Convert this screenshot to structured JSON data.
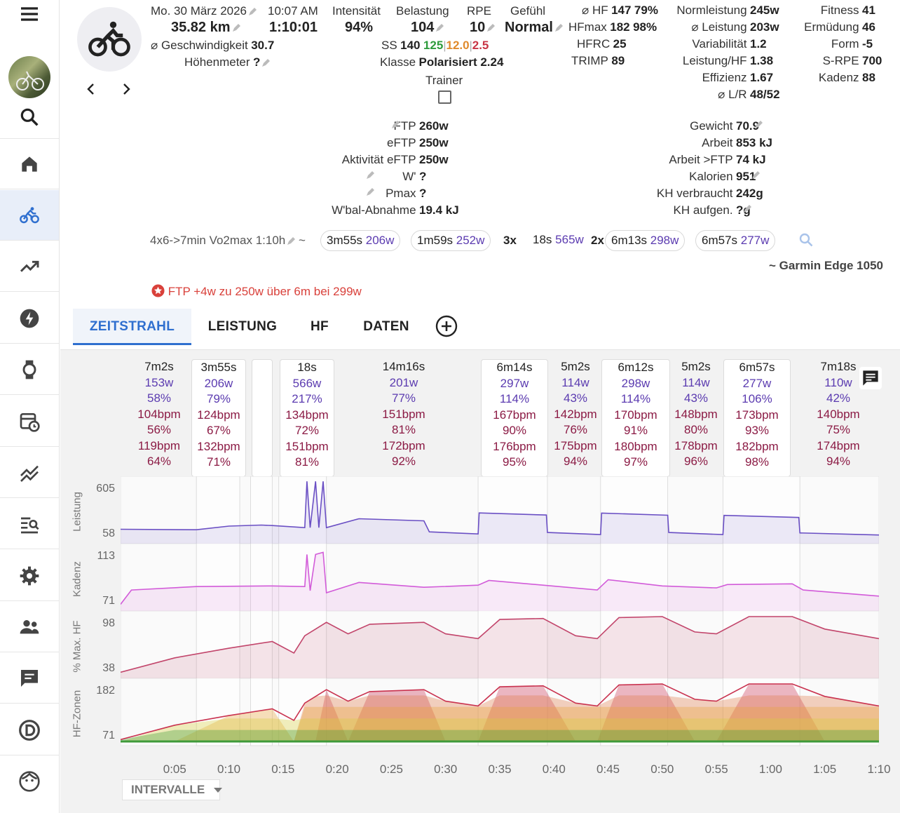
{
  "activity": {
    "date": "Mo. 30 März 2026",
    "time": "10:07 AM",
    "distance": "35.82 km",
    "duration": "1:10:01",
    "avg_speed_label": "⌀ Geschwindigkeit",
    "avg_speed": "30.7",
    "elevation_label": "Höhenmeter",
    "elevation": "?",
    "device": "~ Garmin Edge 1050",
    "name": "4x6->7min Vo2max 1:10h",
    "tilde": "~"
  },
  "load": {
    "intensity_label": "Intensität",
    "intensity": "94%",
    "load_label": "Belastung",
    "load": "104",
    "rpe_label": "RPE",
    "rpe": "10",
    "feel_label": "Gefühl",
    "feel": "Normal",
    "ss_label": "SS",
    "ss": "140",
    "ss_a": "125",
    "ss_b": "12.0",
    "ss_c": "2.5",
    "class_label": "Klasse",
    "class": "Polarisiert 2.24",
    "trainer_label": "Trainer"
  },
  "hr": {
    "hf_label": "⌀ HF",
    "hf": "147",
    "hf_pct": "79%",
    "hfmax_label": "HFmax",
    "hfmax": "182",
    "hfmax_pct": "98%",
    "hfrc_label": "HFRC",
    "hfrc": "25",
    "trimp_label": "TRIMP",
    "trimp": "89"
  },
  "power": {
    "np_label": "Normleistung",
    "np": "245w",
    "avg_label": "⌀ Leistung",
    "avg": "203w",
    "vi_label": "Variabilität",
    "vi": "1.2",
    "phr_label": "Leistung/HF",
    "phr": "1.38",
    "eff_label": "Effizienz",
    "eff": "1.67",
    "lr_label": "⌀ L/R",
    "lr": "48/52"
  },
  "fitness": {
    "fit_label": "Fitness",
    "fit": "41",
    "fat_label": "Ermüdung",
    "fat": "46",
    "form_label": "Form",
    "form": "-5",
    "srpe_label": "S-RPE",
    "srpe": "700",
    "cad_label": "Kadenz",
    "cad": "88"
  },
  "ftp_block": {
    "ftp_label": "FTP",
    "ftp": "260w",
    "eftp_label": "eFTP",
    "eftp": "250w",
    "aeftp_label": "Aktivität eFTP",
    "aeftp": "250w",
    "wp_label": "W'",
    "wp": "?",
    "pmax_label": "Pmax",
    "pmax": "?",
    "wbal_label": "W'bal-Abnahme",
    "wbal": "19.4 kJ"
  },
  "energy": {
    "weight_label": "Gewicht",
    "weight": "70.9",
    "work_label": "Arbeit",
    "work": "853 kJ",
    "work_ftp_label": "Arbeit >FTP",
    "work_ftp": "74 kJ",
    "cal_label": "Kalorien",
    "cal": "951",
    "carbs_used_label": "KH verbraucht",
    "carbs_used": "242g",
    "carbs_in_label": "KH aufgen.",
    "carbs_in": "?g"
  },
  "chips": [
    {
      "prefix": "",
      "dur": "3m55s",
      "w": "206w"
    },
    {
      "prefix": "",
      "dur": "1m59s",
      "w": "252w"
    },
    {
      "prefix": "3x",
      "dur": "18s",
      "w": "565w"
    },
    {
      "prefix": "2x",
      "dur": "6m13s",
      "w": "298w"
    },
    {
      "prefix": "",
      "dur": "6m57s",
      "w": "277w"
    }
  ],
  "ftp_alert": "FTP +4w zu 250w über 6m bei 299w",
  "tabs": [
    "ZEITSTRAHL",
    "LEISTUNG",
    "HF",
    "DATEN"
  ],
  "intervals": [
    {
      "dur": "7m2s",
      "w": "153w",
      "wp": "58%",
      "hr": "104bpm",
      "hrp": "56%",
      "mx": "119bpm",
      "mxp": "64%"
    },
    {
      "dur": "3m55s",
      "w": "206w",
      "wp": "79%",
      "hr": "124bpm",
      "hrp": "67%",
      "mx": "132bpm",
      "mxp": "71%"
    },
    {
      "dur": "18s",
      "w": "566w",
      "wp": "217%",
      "hr": "134bpm",
      "hrp": "72%",
      "mx": "151bpm",
      "mxp": "81%"
    },
    {
      "dur": "14m16s",
      "w": "201w",
      "wp": "77%",
      "hr": "151bpm",
      "hrp": "81%",
      "mx": "172bpm",
      "mxp": "92%"
    },
    {
      "dur": "6m14s",
      "w": "297w",
      "wp": "114%",
      "hr": "167bpm",
      "hrp": "90%",
      "mx": "176bpm",
      "mxp": "95%"
    },
    {
      "dur": "5m2s",
      "w": "114w",
      "wp": "43%",
      "hr": "142bpm",
      "hrp": "76%",
      "mx": "175bpm",
      "mxp": "94%"
    },
    {
      "dur": "6m12s",
      "w": "298w",
      "wp": "114%",
      "hr": "170bpm",
      "hrp": "91%",
      "mx": "180bpm",
      "mxp": "97%"
    },
    {
      "dur": "5m2s",
      "w": "114w",
      "wp": "43%",
      "hr": "148bpm",
      "hrp": "80%",
      "mx": "178bpm",
      "mxp": "96%"
    },
    {
      "dur": "6m57s",
      "w": "277w",
      "wp": "106%",
      "hr": "173bpm",
      "hrp": "93%",
      "mx": "182bpm",
      "mxp": "98%"
    },
    {
      "dur": "7m18s",
      "w": "110w",
      "wp": "42%",
      "hr": "140bpm",
      "hrp": "75%",
      "mx": "174bpm",
      "mxp": "94%"
    }
  ],
  "chart_labels": {
    "power": "Leistung",
    "cadence": "Kadenz",
    "hr_pct": "% Max. HF",
    "hr_zones": "HF-Zonen",
    "power_ticks": [
      "605",
      "58"
    ],
    "cad_ticks": [
      "113",
      "71"
    ],
    "hr_ticks": [
      "98",
      "38"
    ],
    "zone_ticks": [
      "182",
      "71"
    ],
    "x_ticks": [
      "0:05",
      "0:10",
      "0:15",
      "0:20",
      "0:25",
      "0:30",
      "0:35",
      "0:40",
      "0:45",
      "0:50",
      "0:55",
      "1:00",
      "1:05",
      "1:10"
    ],
    "intervals_dropdown": "INTERVALLE"
  },
  "colors": {
    "power": "#6a4fc4",
    "cadence": "#d25bd9",
    "hr": "#c2456b",
    "accent": "#2f6fcf",
    "alert": "#d9413b"
  },
  "chart_data": {
    "type": "line",
    "x_unit": "minutes",
    "x_range": [
      0,
      70
    ],
    "series": [
      {
        "name": "Leistung",
        "ylim": [
          58,
          605
        ],
        "points": [
          [
            0,
            145
          ],
          [
            7,
            160
          ],
          [
            10,
            175
          ],
          [
            13,
            205
          ],
          [
            14,
            180
          ],
          [
            17,
            180
          ],
          [
            17.2,
            600
          ],
          [
            17.5,
            180
          ],
          [
            18,
            600
          ],
          [
            18.3,
            180
          ],
          [
            18.7,
            600
          ],
          [
            19,
            180
          ],
          [
            22,
            245
          ],
          [
            28,
            245
          ],
          [
            28.5,
            120
          ],
          [
            33,
            120
          ],
          [
            33.1,
            300
          ],
          [
            39.3,
            300
          ],
          [
            39.4,
            114
          ],
          [
            44.3,
            114
          ],
          [
            44.4,
            298
          ],
          [
            50.5,
            298
          ],
          [
            50.6,
            114
          ],
          [
            55.6,
            114
          ],
          [
            55.7,
            277
          ],
          [
            62.6,
            277
          ],
          [
            62.7,
            110
          ],
          [
            70,
            110
          ]
        ]
      },
      {
        "name": "Kadenz",
        "ylim": [
          71,
          113
        ],
        "points": [
          [
            0,
            72
          ],
          [
            1,
            84
          ],
          [
            7,
            85
          ],
          [
            14,
            87
          ],
          [
            17,
            85
          ],
          [
            17.2,
            110
          ],
          [
            17.5,
            82
          ],
          [
            18,
            110
          ],
          [
            18.7,
            110
          ],
          [
            19,
            82
          ],
          [
            22,
            88
          ],
          [
            28,
            86
          ],
          [
            33,
            86
          ],
          [
            34,
            91
          ],
          [
            39,
            86
          ],
          [
            44,
            84
          ],
          [
            45,
            90
          ],
          [
            50,
            87
          ],
          [
            55,
            84
          ],
          [
            56,
            88
          ],
          [
            62,
            87
          ],
          [
            63,
            84
          ],
          [
            70,
            78
          ]
        ]
      },
      {
        "name": "% Max. HF",
        "ylim": [
          38,
          98
        ],
        "points": [
          [
            0,
            40
          ],
          [
            5,
            55
          ],
          [
            10,
            65
          ],
          [
            14,
            72
          ],
          [
            16,
            60
          ],
          [
            17,
            78
          ],
          [
            18,
            85
          ],
          [
            19,
            92
          ],
          [
            21,
            80
          ],
          [
            23,
            90
          ],
          [
            28,
            92
          ],
          [
            30,
            80
          ],
          [
            33,
            75
          ],
          [
            35,
            95
          ],
          [
            39,
            96
          ],
          [
            42,
            78
          ],
          [
            44,
            75
          ],
          [
            46,
            97
          ],
          [
            50,
            98
          ],
          [
            53,
            82
          ],
          [
            55,
            80
          ],
          [
            58,
            98
          ],
          [
            62,
            98
          ],
          [
            65,
            85
          ],
          [
            70,
            75
          ]
        ]
      }
    ]
  }
}
